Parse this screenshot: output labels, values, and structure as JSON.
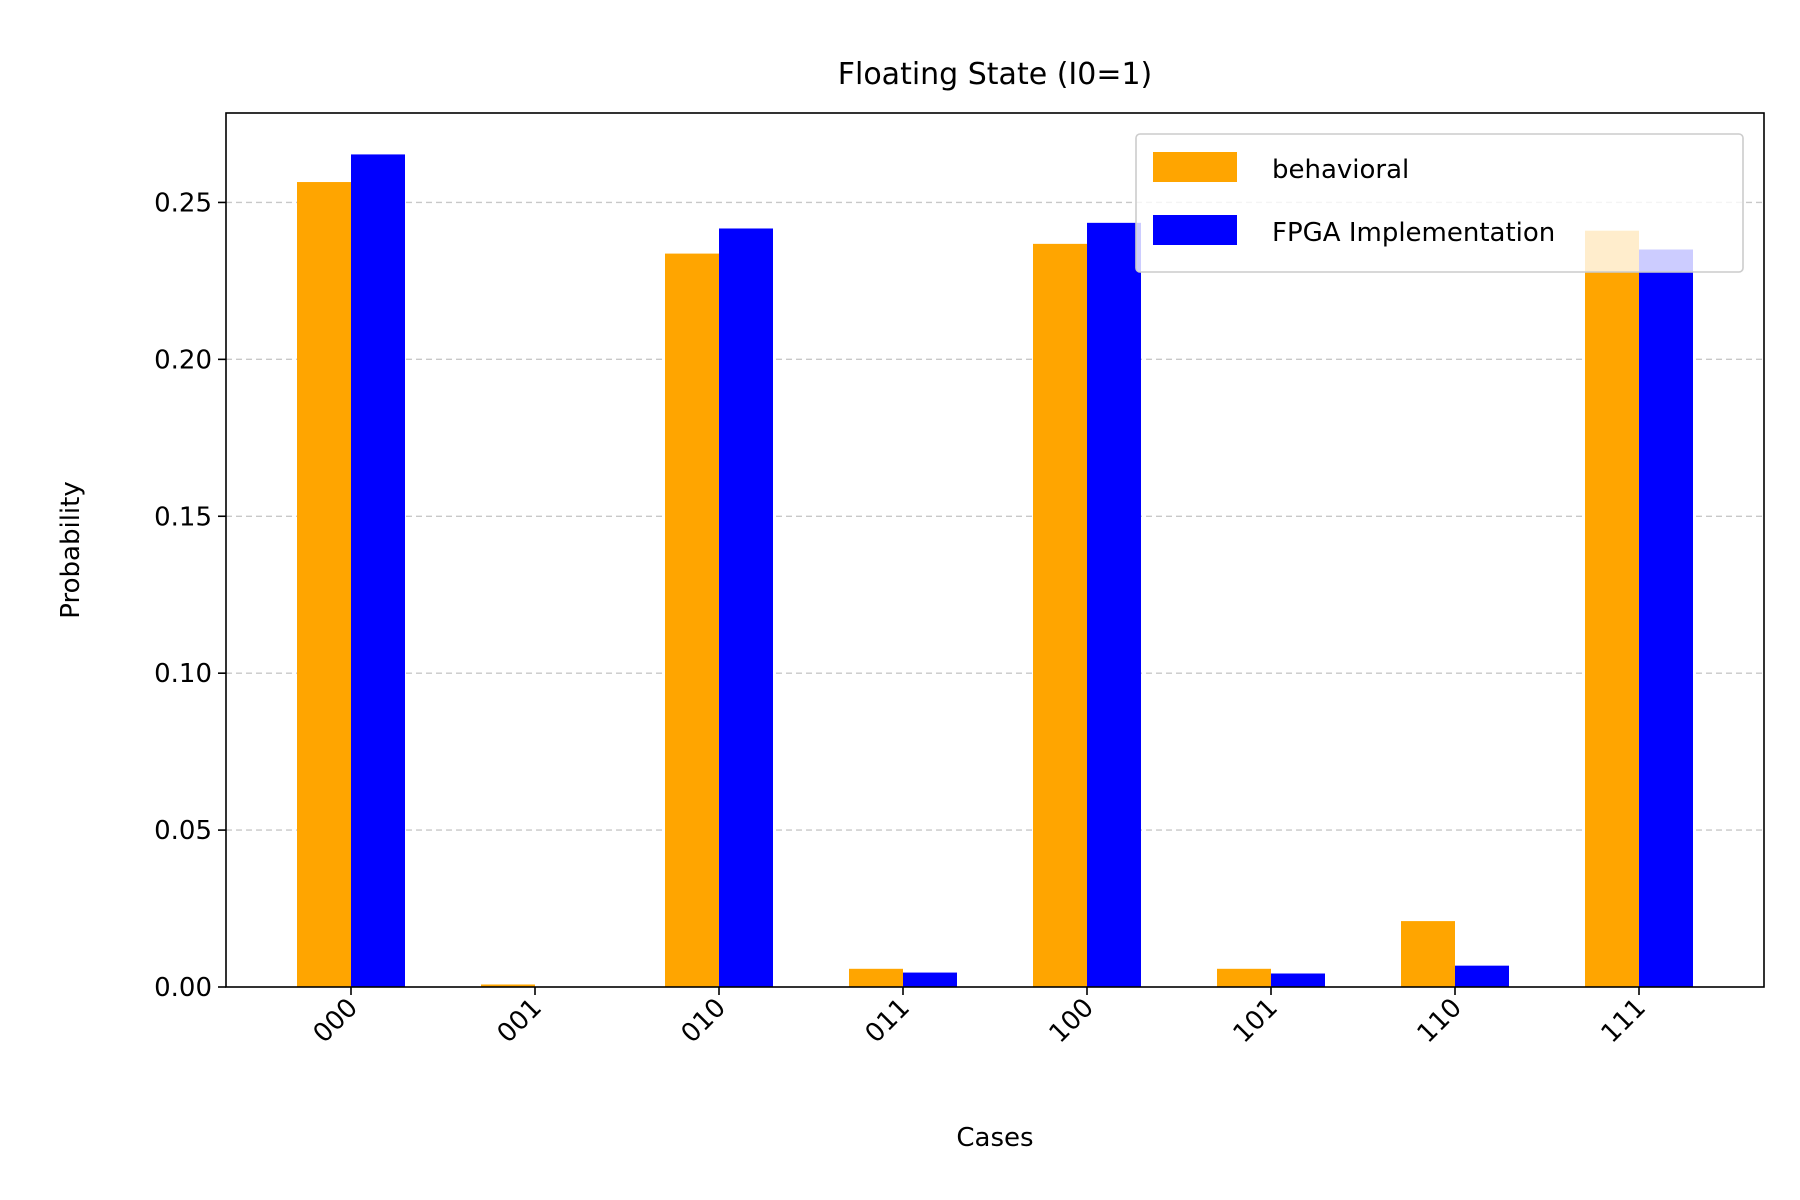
{
  "chart_data": {
    "type": "bar",
    "title": "Floating State (I0=1)",
    "xlabel": "Cases",
    "ylabel": "Probability",
    "categories": [
      "000",
      "001",
      "010",
      "011",
      "100",
      "101",
      "110",
      "111"
    ],
    "series": [
      {
        "name": "behavioral",
        "color": "#FFA500",
        "values": [
          0.2565,
          0.0008,
          0.2337,
          0.0058,
          0.2368,
          0.0058,
          0.021,
          0.241
        ]
      },
      {
        "name": "FPGA Implementation",
        "color": "#0000FF",
        "values": [
          0.2653,
          0.0,
          0.2417,
          0.0046,
          0.2435,
          0.0043,
          0.0068,
          0.235
        ]
      }
    ],
    "ylim": [
      0,
      0.2785
    ],
    "yticks": [
      "0.00",
      "0.05",
      "0.10",
      "0.15",
      "0.20",
      "0.25"
    ],
    "grid": "y-dashed",
    "legend": "top-right"
  }
}
